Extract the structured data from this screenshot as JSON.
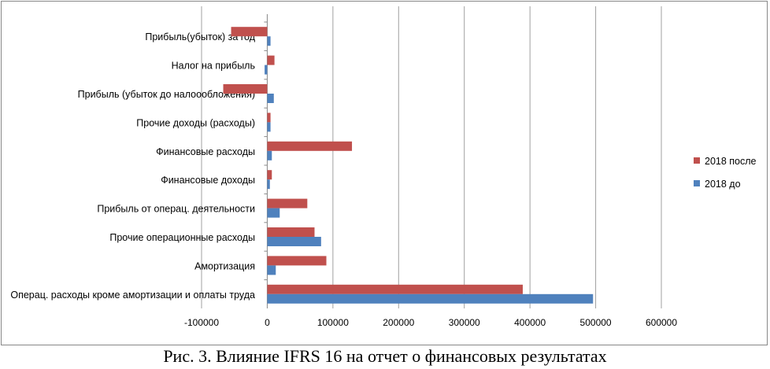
{
  "chart_data": {
    "type": "bar",
    "orientation": "horizontal",
    "categories": [
      "Операц. расходы кроме амортизации и оплаты труда",
      "Амортизация",
      "Прочие операционные расходы",
      "Прибыль от операц. деятельности",
      "Финансовые доходы",
      "Финансовые расходы",
      "Прочие доходы (расходы)",
      "Прибыль (убыток до налоообложения)",
      "Налог на прибыль",
      "Прибыль(убыток) за год"
    ],
    "series": [
      {
        "name": "2018 до",
        "color": "#4f81bd",
        "values": [
          496000,
          13000,
          82000,
          19000,
          4000,
          7000,
          5000,
          10000,
          -4000,
          5000
        ]
      },
      {
        "name": "2018 после",
        "color": "#c0504d",
        "values": [
          389000,
          90000,
          72000,
          61000,
          7000,
          129000,
          5000,
          -67000,
          11000,
          -55000
        ]
      }
    ],
    "xlim": [
      -100000,
      600000
    ],
    "xticks": [
      "-100000",
      "0",
      "100000",
      "200000",
      "300000",
      "400000",
      "500000",
      "600000"
    ],
    "grid": true,
    "legend": "right",
    "legend_order": [
      "2018 после",
      "2018 до"
    ]
  },
  "caption": "Рис. 3. Влияние IFRS 16 на отчет о финансовых результатах"
}
